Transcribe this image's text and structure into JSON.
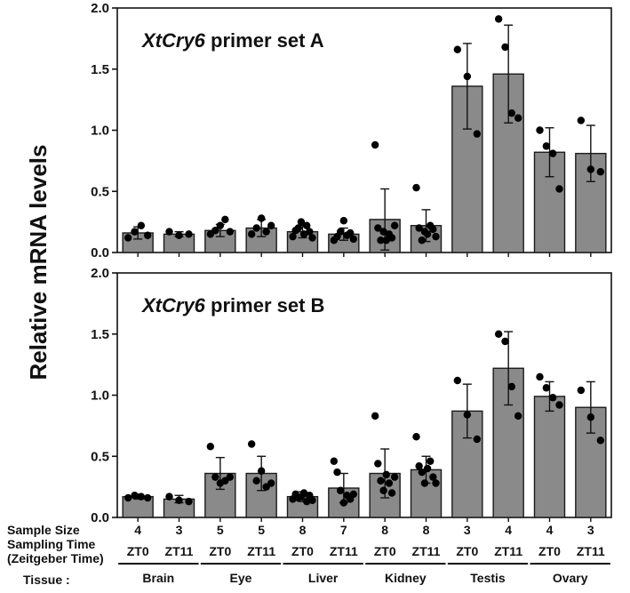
{
  "chart_data": {
    "type": "bar",
    "ylabel": "Relative mRNA levels",
    "ylim": [
      0,
      2.0
    ],
    "yticks": [
      "0.0",
      "0.5",
      "1.0",
      "1.5",
      "2.0"
    ],
    "categories": [
      {
        "tissue": "Brain",
        "time": "ZT0",
        "n": "4"
      },
      {
        "tissue": "Brain",
        "time": "ZT11",
        "n": "3"
      },
      {
        "tissue": "Eye",
        "time": "ZT0",
        "n": "5"
      },
      {
        "tissue": "Eye",
        "time": "ZT11",
        "n": "5"
      },
      {
        "tissue": "Liver",
        "time": "ZT0",
        "n": "8"
      },
      {
        "tissue": "Liver",
        "time": "ZT11",
        "n": "7"
      },
      {
        "tissue": "Kidney",
        "time": "ZT0",
        "n": "8"
      },
      {
        "tissue": "Kidney",
        "time": "ZT11",
        "n": "8"
      },
      {
        "tissue": "Testis",
        "time": "ZT0",
        "n": "3"
      },
      {
        "tissue": "Testis",
        "time": "ZT11",
        "n": "4"
      },
      {
        "tissue": "Ovary",
        "time": "ZT0",
        "n": "4"
      },
      {
        "tissue": "Ovary",
        "time": "ZT11",
        "n": "3"
      }
    ],
    "tissues": [
      "Brain",
      "Eye",
      "Liver",
      "Kidney",
      "Testis",
      "Ovary"
    ],
    "row_labels": {
      "sample_size": "Sample Size",
      "sampling_time": "Sampling Time",
      "zeitgeber": "(Zeitgeber Time)",
      "tissue": "Tissue :"
    },
    "panels": [
      {
        "title_italic": "XtCry6",
        "title_rest": " primer set A",
        "means": [
          0.16,
          0.15,
          0.18,
          0.2,
          0.17,
          0.15,
          0.27,
          0.22,
          1.36,
          1.46,
          0.82,
          0.81
        ],
        "sd": [
          0.05,
          0.02,
          0.05,
          0.07,
          0.05,
          0.05,
          0.25,
          0.13,
          0.35,
          0.4,
          0.2,
          0.23
        ],
        "points": [
          [
            0.12,
            0.17,
            0.22,
            0.14
          ],
          [
            0.17,
            0.14,
            0.15
          ],
          [
            0.15,
            0.18,
            0.22,
            0.27,
            0.17
          ],
          [
            0.15,
            0.2,
            0.28,
            0.17,
            0.22
          ],
          [
            0.13,
            0.18,
            0.2,
            0.25,
            0.15,
            0.22,
            0.17,
            0.12
          ],
          [
            0.1,
            0.13,
            0.17,
            0.26,
            0.14,
            0.16,
            0.11
          ],
          [
            0.88,
            0.2,
            0.1,
            0.17,
            0.1,
            0.15,
            0.12,
            0.22
          ],
          [
            0.53,
            0.2,
            0.1,
            0.17,
            0.15,
            0.22,
            0.19,
            0.13
          ],
          [
            1.66,
            1.44,
            0.97
          ],
          [
            1.91,
            1.68,
            1.14,
            1.1
          ],
          [
            1.0,
            0.87,
            0.81,
            0.52
          ],
          [
            1.08,
            0.68,
            0.66
          ]
        ]
      },
      {
        "title_italic": "XtCry6",
        "title_rest": " primer set B",
        "means": [
          0.17,
          0.15,
          0.36,
          0.36,
          0.17,
          0.24,
          0.36,
          0.39,
          0.87,
          1.22,
          0.99,
          0.9
        ],
        "sd": [
          0.02,
          0.03,
          0.13,
          0.14,
          0.04,
          0.12,
          0.2,
          0.11,
          0.22,
          0.3,
          0.12,
          0.21
        ],
        "points": [
          [
            0.16,
            0.18,
            0.17,
            0.16
          ],
          [
            0.17,
            0.14,
            0.13
          ],
          [
            0.58,
            0.33,
            0.28,
            0.3,
            0.33
          ],
          [
            0.6,
            0.3,
            0.38,
            0.25,
            0.28
          ],
          [
            0.15,
            0.19,
            0.16,
            0.17,
            0.2,
            0.13,
            0.18,
            0.14
          ],
          [
            0.46,
            0.37,
            0.22,
            0.12,
            0.18,
            0.15,
            0.19
          ],
          [
            0.83,
            0.44,
            0.3,
            0.22,
            0.35,
            0.28,
            0.2,
            0.33
          ],
          [
            0.66,
            0.42,
            0.37,
            0.28,
            0.4,
            0.46,
            0.33,
            0.28
          ],
          [
            1.12,
            0.84,
            0.64
          ],
          [
            1.5,
            1.44,
            1.07,
            0.83
          ],
          [
            1.15,
            1.06,
            0.98,
            0.92
          ],
          [
            1.04,
            0.82,
            0.63
          ]
        ]
      }
    ]
  }
}
